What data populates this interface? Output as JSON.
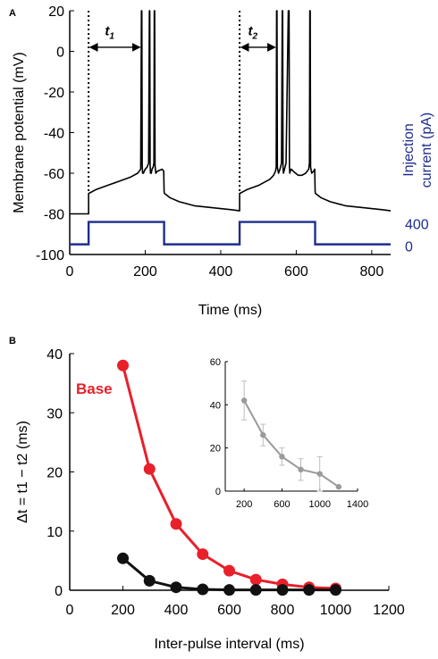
{
  "panel_labels": {
    "a": "A",
    "b": "B"
  },
  "colors": {
    "voltage": "#000000",
    "current": "#1f2d8f",
    "base": "#e8202a",
    "black_series": "#111111",
    "inset": "#9a9a9a",
    "axis": "#000000"
  },
  "chart_data": [
    {
      "type": "line",
      "panel": "A",
      "xlabel": "Time (ms)",
      "ylabel": "Membrane potential (mV)",
      "ylabel2": "Injection current (pA)",
      "xlim": [
        0,
        850
      ],
      "ylim": [
        -100,
        20
      ],
      "x_ticks": [
        "0",
        "200",
        "400",
        "600",
        "800"
      ],
      "y_ticks": [
        "20",
        "0",
        "-20",
        "-40",
        "-60",
        "-80",
        "-100"
      ],
      "y2_ticks": [
        "400",
        "0"
      ],
      "annotations": {
        "t1": "t",
        "t1_sub": "1",
        "t2": "t",
        "t2_sub": "2"
      },
      "series": [
        {
          "x": [
            0,
            50,
            50,
            70,
            100,
            130,
            160,
            180,
            188,
            190,
            191,
            192,
            193,
            195,
            200,
            205,
            209,
            211,
            212,
            213,
            214,
            216,
            218,
            221,
            223,
            224,
            225,
            226,
            228,
            232,
            245,
            249,
            250,
            251,
            255,
            265,
            290,
            330,
            380,
            430,
            450,
            450,
            470,
            500,
            530,
            540,
            545,
            547,
            548,
            549,
            550,
            553,
            557,
            561,
            563,
            564,
            565,
            566,
            569,
            573,
            579,
            581,
            582,
            583,
            584,
            587,
            592,
            605,
            615,
            625,
            633,
            635,
            636,
            637,
            638,
            641,
            646,
            649,
            650,
            651,
            655,
            665,
            690,
            730,
            780,
            830,
            850
          ],
          "y": [
            -80,
            -80,
            -70,
            -68,
            -66,
            -64,
            -62,
            -60,
            -58,
            20,
            20,
            -56,
            -60,
            -60,
            -58,
            -57,
            -55,
            20,
            20,
            -56,
            -60,
            -60,
            -58,
            -57,
            -55,
            20,
            20,
            -56,
            -60,
            -59,
            -58,
            -59,
            -69,
            -70,
            -70.5,
            -72,
            -74,
            -76,
            -77,
            -78,
            -78.5,
            -70,
            -68,
            -66,
            -63,
            -61,
            -59,
            -57,
            20,
            20,
            -57,
            -60,
            -58,
            -55,
            20,
            20,
            -57,
            -60,
            -58,
            -55,
            20,
            20,
            -57,
            -60,
            -59,
            -58,
            -59,
            -61,
            -61,
            -60,
            -58,
            -55,
            20,
            20,
            -57,
            -60,
            -59,
            -58,
            -69,
            -70,
            -70.5,
            -72,
            -74,
            -76,
            -77,
            -78,
            -78.5
          ]
        },
        {
          "name": "current",
          "x": [
            0,
            50,
            50,
            250,
            250,
            450,
            450,
            650,
            650,
            850
          ],
          "y": [
            0,
            0,
            400,
            400,
            0,
            0,
            400,
            400,
            0,
            0
          ]
        }
      ]
    },
    {
      "type": "line",
      "panel": "B",
      "xlabel": "Inter-pulse interval (ms)",
      "ylabel": "Δt = t1 − t2 (ms)",
      "xlim": [
        0,
        1200
      ],
      "ylim": [
        0,
        40
      ],
      "x_ticks": [
        "0",
        "200",
        "400",
        "600",
        "800",
        "1000",
        "1200"
      ],
      "y_ticks": [
        "40",
        "30",
        "20",
        "10",
        "0"
      ],
      "series": [
        {
          "name": "Base",
          "x": [
            200,
            300,
            400,
            500,
            600,
            700,
            800,
            900,
            1000
          ],
          "y": [
            38,
            20.5,
            11.2,
            6.1,
            3.3,
            1.8,
            1.0,
            0.5,
            0.3
          ]
        },
        {
          "x": [
            200,
            300,
            400,
            500,
            600,
            700,
            800,
            900,
            1000
          ],
          "y": [
            5.4,
            1.6,
            0.5,
            0.15,
            0.05,
            0.05,
            0.05,
            0.05,
            0.05
          ]
        }
      ]
    },
    {
      "type": "line",
      "panel": "B-inset",
      "xlim": [
        0,
        1400
      ],
      "ylim": [
        0,
        60
      ],
      "x_ticks": [
        "200",
        "600",
        "1000",
        "1400"
      ],
      "y_ticks": [
        "60",
        "40",
        "20",
        "0"
      ],
      "series": [
        {
          "x": [
            200,
            400,
            600,
            800,
            1000,
            1200
          ],
          "y": [
            42,
            26,
            16,
            10,
            8,
            2
          ],
          "err": [
            9,
            5,
            4,
            5,
            8,
            0
          ]
        }
      ]
    }
  ]
}
